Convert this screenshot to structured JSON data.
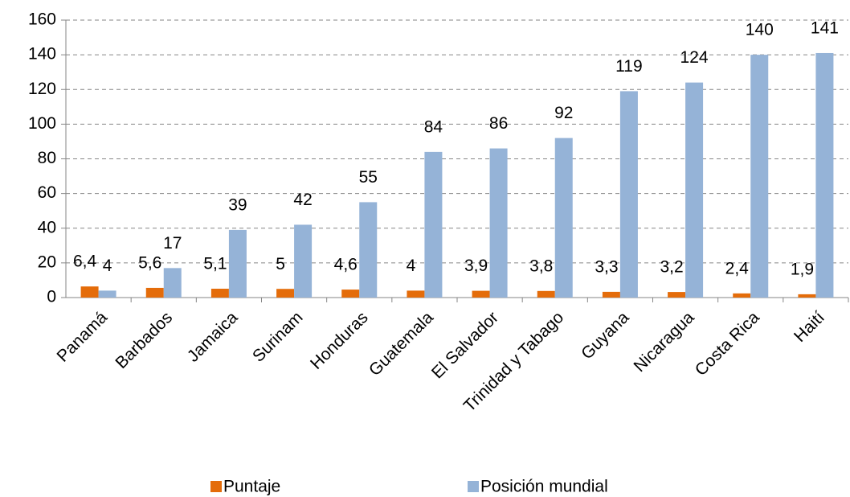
{
  "chart_data": {
    "type": "bar",
    "categories": [
      "Panamá",
      "Barbados",
      "Jamaica",
      "Surinam",
      "Honduras",
      "Guatemala",
      "El Salvador",
      "Trinidad y Tabago",
      "Guyana",
      "Nicaragua",
      "Costa Rica",
      "Haití"
    ],
    "series": [
      {
        "name": "Puntaje",
        "color": "#e46c0a",
        "values": [
          6.4,
          5.6,
          5.1,
          5,
          4.6,
          4,
          3.9,
          3.8,
          3.3,
          3.2,
          2.4,
          1.9
        ],
        "value_labels": [
          "6,4",
          "5,6",
          "5,1",
          "5",
          "4,6",
          "4",
          "3,9",
          "3,8",
          "3,3",
          "3,2",
          "2,4",
          "1,9"
        ]
      },
      {
        "name": "Posición mundial",
        "color": "#95b3d7",
        "values": [
          4,
          17,
          39,
          42,
          55,
          84,
          86,
          92,
          119,
          124,
          140,
          141
        ]
      }
    ],
    "ylim": [
      0,
      160
    ],
    "yticks": [
      0,
      20,
      40,
      60,
      80,
      100,
      120,
      140,
      160
    ],
    "grid": true,
    "legend": "bottom"
  }
}
